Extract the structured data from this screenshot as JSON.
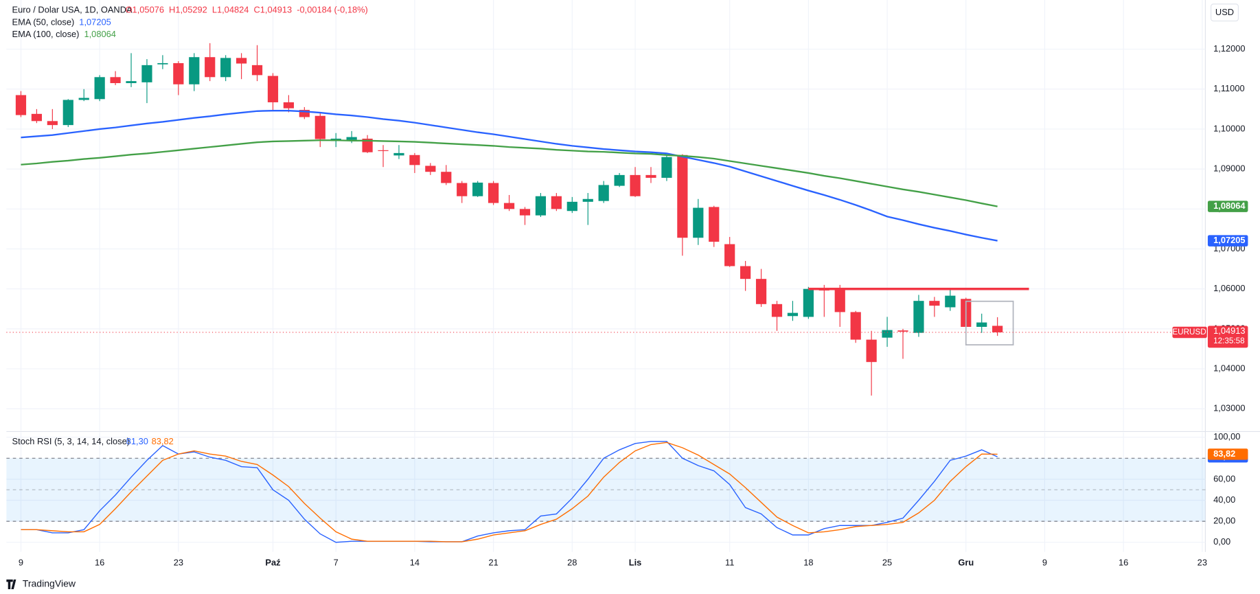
{
  "chart_data": [
    {
      "type": "candlestick",
      "title": "Euro / Dolar USA, 1D, OANDA",
      "header_values": [
        "O1,05076",
        "H1,05292",
        "L1,04824",
        "C1,04913",
        "-0,00184 (-0,18%)"
      ],
      "up_color": "#089981",
      "down_color": "#f23645",
      "open": [
        1.1085,
        1.1038,
        1.102,
        1.101,
        1.1073,
        1.1075,
        1.113,
        1.1115,
        1.1117,
        1.1162,
        1.1165,
        1.1112,
        1.118,
        1.113,
        1.1178,
        1.116,
        1.1133,
        1.1067,
        1.1048,
        1.1033,
        1.097,
        1.0973,
        1.0976,
        1.0947,
        1.0934,
        1.0935,
        1.0908,
        1.0893,
        1.0865,
        1.0832,
        1.0865,
        1.0815,
        1.08,
        1.0784,
        1.0832,
        1.0795,
        1.0818,
        1.082,
        1.0858,
        1.0885,
        1.0885,
        1.0878,
        1.0935,
        1.0728,
        1.0805,
        1.0712,
        1.0657,
        1.0625,
        1.0562,
        1.0532,
        1.053,
        1.06,
        1.0598,
        1.0542,
        1.0473,
        1.0478,
        1.0496,
        1.049,
        1.057,
        1.0554,
        1.0575,
        1.0505,
        1.05076
      ],
      "high": [
        1.1095,
        1.105,
        1.105,
        1.1075,
        1.11,
        1.1135,
        1.1145,
        1.119,
        1.1175,
        1.1185,
        1.117,
        1.119,
        1.1215,
        1.1185,
        1.119,
        1.121,
        1.114,
        1.1085,
        1.1055,
        1.104,
        1.099,
        1.0995,
        1.0985,
        1.096,
        1.096,
        1.094,
        1.0915,
        1.091,
        1.087,
        1.087,
        1.087,
        1.0835,
        1.0805,
        1.084,
        1.084,
        1.083,
        1.084,
        1.087,
        1.089,
        1.0905,
        1.0905,
        1.0935,
        1.0937,
        1.0825,
        1.0808,
        1.073,
        1.067,
        1.065,
        1.057,
        1.057,
        1.0605,
        1.061,
        1.061,
        1.0545,
        1.0495,
        1.053,
        1.05,
        1.0585,
        1.058,
        1.0598,
        1.0578,
        1.0538,
        1.05292
      ],
      "low": [
        1.103,
        1.1015,
        1.1,
        1.1005,
        1.107,
        1.107,
        1.111,
        1.1105,
        1.1065,
        1.115,
        1.1085,
        1.1095,
        1.112,
        1.112,
        1.1125,
        1.112,
        1.1045,
        1.1042,
        1.1025,
        1.0955,
        1.0955,
        1.0965,
        1.094,
        1.0905,
        1.0925,
        1.089,
        1.0885,
        1.086,
        1.0815,
        1.083,
        1.081,
        1.0795,
        1.076,
        1.078,
        1.0795,
        1.079,
        1.076,
        1.0815,
        1.0855,
        1.083,
        1.0865,
        1.087,
        1.0683,
        1.071,
        1.0705,
        1.0655,
        1.0595,
        1.0555,
        1.0495,
        1.052,
        1.0525,
        1.053,
        1.0505,
        1.0465,
        1.0333,
        1.0455,
        1.0425,
        1.048,
        1.053,
        1.0545,
        1.046,
        1.049,
        1.04824
      ],
      "close": [
        1.1035,
        1.102,
        1.101,
        1.1073,
        1.1078,
        1.113,
        1.1115,
        1.112,
        1.116,
        1.1165,
        1.1112,
        1.118,
        1.113,
        1.1178,
        1.1164,
        1.1135,
        1.1067,
        1.1052,
        1.103,
        1.0975,
        1.0976,
        1.098,
        1.0942,
        1.0945,
        1.094,
        1.091,
        1.0893,
        1.0865,
        1.0832,
        1.0866,
        1.0815,
        1.08,
        1.0784,
        1.0832,
        1.08,
        1.0818,
        1.0825,
        1.086,
        1.0885,
        1.0832,
        1.0878,
        1.093,
        1.0728,
        1.0803,
        1.0718,
        1.0657,
        1.0625,
        1.0562,
        1.053,
        1.054,
        1.06,
        1.0596,
        1.0542,
        1.0473,
        1.0417,
        1.0497,
        1.0493,
        1.057,
        1.0558,
        1.0583,
        1.0505,
        1.0516,
        1.04913
      ],
      "series": [
        {
          "name": "EMA (50, close)",
          "color": "#2962ff",
          "last_label": "1,07205",
          "values": [
            1.0979,
            1.0982,
            1.0985,
            1.099,
            1.0995,
            1.1,
            1.1004,
            1.1009,
            1.1014,
            1.1018,
            1.1023,
            1.1028,
            1.1032,
            1.1037,
            1.1041,
            1.1045,
            1.1046,
            1.1046,
            1.1044,
            1.1041,
            1.1037,
            1.1034,
            1.103,
            1.1025,
            1.1021,
            1.1016,
            1.101,
            1.1004,
            1.0998,
            1.0992,
            1.0987,
            1.0981,
            1.0975,
            1.0969,
            1.0963,
            1.0958,
            1.0954,
            1.095,
            1.0947,
            1.0944,
            1.0942,
            1.0939,
            1.0931,
            1.0923,
            1.0915,
            1.0906,
            1.0894,
            1.0882,
            1.087,
            1.0858,
            1.0846,
            1.0835,
            1.0823,
            1.081,
            1.0796,
            1.0781,
            1.0772,
            1.0762,
            1.0753,
            1.0745,
            1.0736,
            1.0728,
            1.07205
          ]
        },
        {
          "name": "EMA (100, close)",
          "color": "#43a047",
          "last_label": "1,08064",
          "values": [
            1.0911,
            1.0914,
            1.0918,
            1.0921,
            1.0925,
            1.0928,
            1.0932,
            1.0936,
            1.0939,
            1.0943,
            1.0947,
            1.0951,
            1.0955,
            1.0959,
            1.0963,
            1.0967,
            1.0969,
            1.097,
            1.0971,
            1.0972,
            1.0972,
            1.0971,
            1.0971,
            1.097,
            1.0969,
            1.0968,
            1.0966,
            1.0964,
            1.0962,
            1.096,
            1.0958,
            1.0955,
            1.0953,
            1.0951,
            1.0948,
            1.0946,
            1.0944,
            1.0943,
            1.0941,
            1.0939,
            1.0938,
            1.0935,
            1.0933,
            1.093,
            1.0926,
            1.092,
            1.0914,
            1.0908,
            1.0902,
            1.0896,
            1.089,
            1.0883,
            1.0877,
            1.087,
            1.0863,
            1.0856,
            1.0849,
            1.0843,
            1.0836,
            1.0829,
            1.0822,
            1.0814,
            1.08064
          ]
        }
      ],
      "symbol": "EURUSD",
      "last_price_label": "1,04913",
      "countdown": "12:35:58",
      "currency": "USD",
      "annotations": [
        {
          "type": "hline",
          "color": "#f23645",
          "y": 1.06,
          "x": [
            50,
            64
          ]
        },
        {
          "type": "rect",
          "color": "#b2b5be",
          "y": [
            1.046,
            1.0569
          ],
          "x": [
            60,
            63
          ]
        }
      ],
      "xlim": [
        -0.92,
        75.2
      ],
      "ylim": [
        1.0245,
        1.1323
      ],
      "xticks": [
        {
          "value": 0,
          "label": "9"
        },
        {
          "value": 5,
          "label": "16"
        },
        {
          "value": 10,
          "label": "23"
        },
        {
          "value": 16,
          "label": "Paź"
        },
        {
          "value": 20,
          "label": "7"
        },
        {
          "value": 25,
          "label": "14"
        },
        {
          "value": 30,
          "label": "21"
        },
        {
          "value": 35,
          "label": "28"
        },
        {
          "value": 39,
          "label": "Lis"
        },
        {
          "value": 45,
          "label": "11"
        },
        {
          "value": 50,
          "label": "18"
        },
        {
          "value": 55,
          "label": "25"
        },
        {
          "value": 60,
          "label": "Gru"
        },
        {
          "value": 65,
          "label": "9"
        },
        {
          "value": 70,
          "label": "16"
        },
        {
          "value": 75,
          "label": "23"
        }
      ],
      "yticks": [
        {
          "value": 1.03,
          "label": "1,03000"
        },
        {
          "value": 1.04,
          "label": "1,04000"
        },
        {
          "value": 1.05,
          "label": "1,05000"
        },
        {
          "value": 1.06,
          "label": "1,06000"
        },
        {
          "value": 1.07,
          "label": "1,07000"
        },
        {
          "value": 1.08,
          "label": "1,08000"
        },
        {
          "value": 1.09,
          "label": "1,09000"
        },
        {
          "value": 1.1,
          "label": "1,10000"
        },
        {
          "value": 1.11,
          "label": "1,11000"
        },
        {
          "value": 1.12,
          "label": "1,12000"
        }
      ],
      "grid": true
    },
    {
      "type": "line",
      "title": "Stoch RSI (5, 3, 14, 14, close)",
      "series": [
        {
          "name": "K",
          "color": "#2962ff",
          "last_label": "81,30",
          "values": [
            12,
            12,
            9,
            9,
            12,
            30,
            45,
            62,
            78,
            92,
            84,
            86,
            81,
            78,
            72,
            71,
            50,
            40,
            22,
            8,
            0,
            1,
            1,
            1,
            1,
            1,
            0.5,
            0.5,
            0.5,
            6,
            9,
            11,
            12,
            25,
            27,
            42,
            60,
            80,
            88,
            94,
            96,
            96,
            80,
            73,
            68,
            55,
            33,
            27,
            14,
            7,
            7,
            13,
            16,
            16,
            16,
            19,
            23,
            40,
            58,
            78,
            82,
            88,
            81.3
          ]
        },
        {
          "name": "D",
          "color": "#ff6d00",
          "last_label": "83,82",
          "values": [
            12,
            12,
            11,
            10,
            10,
            17,
            32,
            48,
            63,
            78,
            84,
            87,
            84,
            82,
            77,
            74,
            64,
            53,
            37,
            23,
            10,
            3,
            1,
            1,
            1,
            1,
            1,
            0.5,
            0.5,
            3,
            7,
            9,
            11,
            17,
            22,
            32,
            44,
            62,
            76,
            87,
            93,
            95,
            90,
            83,
            74,
            65,
            52,
            38,
            24,
            16,
            9,
            10,
            12,
            15,
            16,
            17,
            19,
            28,
            40,
            58,
            72,
            84,
            83.82
          ]
        }
      ],
      "bands": [
        20,
        50,
        80
      ],
      "band_color": "#2196f3",
      "ylim": [
        -9.2,
        104.6
      ],
      "yticks": [
        {
          "value": 0,
          "label": "0,00"
        },
        {
          "value": 20,
          "label": "20,00"
        },
        {
          "value": 40,
          "label": "40,00"
        },
        {
          "value": 60,
          "label": "60,00"
        },
        {
          "value": 100,
          "label": "100,00"
        }
      ]
    }
  ],
  "brand": "TradingView"
}
